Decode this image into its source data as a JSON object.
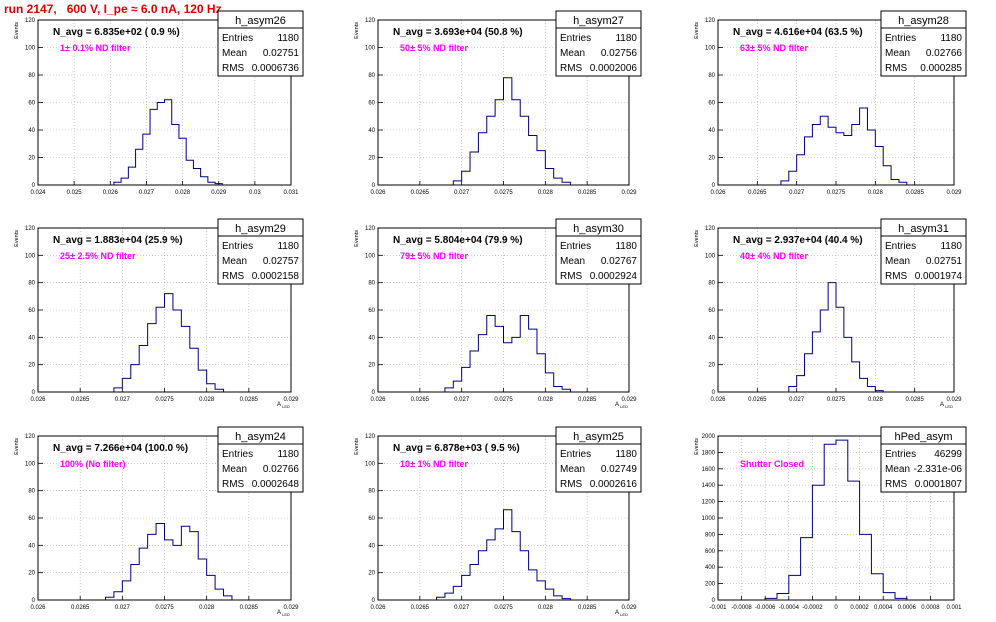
{
  "title": "run 2147,   600 V, I_pe ≈ 6.0 nA, 120 Hz",
  "colors": {
    "histogram": "#00007f",
    "annotation": "#ff00ff",
    "title": "#e00000",
    "grid": "#b0b0b0"
  },
  "chart_data": [
    {
      "type": "histogram",
      "name": "h_asym26",
      "entries": "1180",
      "mean": "0.02751",
      "rms": "0.0006736",
      "navg": "N_avg = 6.835e+02 ( 0.9 %)",
      "filter": "1± 0.1% ND filter",
      "ylabel": "Events",
      "xlabel": "",
      "xlim": [
        0.024,
        0.031
      ],
      "ylim": [
        0,
        120
      ],
      "xticks": [
        "0.024",
        "0.025",
        "0.026",
        "0.027",
        "0.028",
        "0.029",
        "0.03",
        "0.031"
      ],
      "yticks": [
        "0",
        "20",
        "40",
        "60",
        "80",
        "100",
        "120"
      ],
      "x": [
        0.0262,
        0.0264,
        0.0266,
        0.0268,
        0.027,
        0.0272,
        0.0274,
        0.0276,
        0.0278,
        0.028,
        0.0282,
        0.0284,
        0.0286,
        0.0288,
        0.029
      ],
      "y": [
        2,
        5,
        13,
        26,
        37,
        55,
        60,
        62,
        44,
        34,
        18,
        12,
        6,
        2,
        1
      ]
    },
    {
      "type": "histogram",
      "name": "h_asym27",
      "entries": "1180",
      "mean": "0.02756",
      "rms": "0.0002006",
      "navg": "N_avg = 3.693e+04 (50.8 %)",
      "filter": "50± 5% ND filter",
      "ylabel": "Events",
      "xlabel": "",
      "xlim": [
        0.026,
        0.029
      ],
      "ylim": [
        0,
        120
      ],
      "xticks": [
        "0.026",
        "0.0265",
        "0.027",
        "0.0275",
        "0.028",
        "0.0285",
        "0.029"
      ],
      "yticks": [
        "0",
        "20",
        "40",
        "60",
        "80",
        "100",
        "120"
      ],
      "x": [
        0.02695,
        0.02705,
        0.02715,
        0.02725,
        0.02735,
        0.02745,
        0.02755,
        0.02765,
        0.02775,
        0.02785,
        0.02795,
        0.02805,
        0.02815,
        0.02825
      ],
      "y": [
        3,
        10,
        24,
        38,
        50,
        62,
        78,
        62,
        50,
        36,
        25,
        12,
        5,
        2
      ]
    },
    {
      "type": "histogram",
      "name": "h_asym28",
      "entries": "1180",
      "mean": "0.02766",
      "rms": "0.000285",
      "navg": "N_avg = 4.616e+04 (63.5 %)",
      "filter": "63± 5% ND filter",
      "ylabel": "Events",
      "xlabel": "",
      "xlim": [
        0.026,
        0.029
      ],
      "ylim": [
        0,
        120
      ],
      "xticks": [
        "0.026",
        "0.0265",
        "0.027",
        "0.0275",
        "0.028",
        "0.0285",
        "0.029"
      ],
      "yticks": [
        "0",
        "20",
        "40",
        "60",
        "80",
        "100",
        "120"
      ],
      "x": [
        0.02685,
        0.02695,
        0.02705,
        0.02715,
        0.02725,
        0.02735,
        0.02745,
        0.02755,
        0.02765,
        0.02775,
        0.02785,
        0.02795,
        0.02805,
        0.02815,
        0.02825,
        0.02835
      ],
      "y": [
        3,
        10,
        22,
        35,
        44,
        50,
        42,
        38,
        36,
        44,
        56,
        40,
        28,
        14,
        4,
        2
      ]
    },
    {
      "type": "histogram",
      "name": "h_asym29",
      "entries": "1180",
      "mean": "0.02757",
      "rms": "0.0002158",
      "navg": "N_avg = 1.883e+04 (25.9 %)",
      "filter": "25± 2.5% ND filter",
      "ylabel": "Events",
      "xlabel": "A_{LED}",
      "xlim": [
        0.026,
        0.029
      ],
      "ylim": [
        0,
        120
      ],
      "xticks": [
        "0.026",
        "0.0265",
        "0.027",
        "0.0275",
        "0.028",
        "0.0285",
        "0.029"
      ],
      "yticks": [
        "0",
        "20",
        "40",
        "60",
        "80",
        "100",
        "120"
      ],
      "x": [
        0.02695,
        0.02705,
        0.02715,
        0.02725,
        0.02735,
        0.02745,
        0.02755,
        0.02765,
        0.02775,
        0.02785,
        0.02795,
        0.02805,
        0.02815
      ],
      "y": [
        3,
        10,
        20,
        34,
        50,
        62,
        72,
        60,
        48,
        32,
        16,
        6,
        2
      ]
    },
    {
      "type": "histogram",
      "name": "h_asym30",
      "entries": "1180",
      "mean": "0.02767",
      "rms": "0.0002924",
      "navg": "N_avg = 5.804e+04 (79.9 %)",
      "filter": "79± 5% ND filter",
      "ylabel": "Events",
      "xlabel": "A_{LED}",
      "xlim": [
        0.026,
        0.029
      ],
      "ylim": [
        0,
        120
      ],
      "xticks": [
        "0.026",
        "0.0265",
        "0.027",
        "0.0275",
        "0.028",
        "0.0285",
        "0.029"
      ],
      "yticks": [
        "0",
        "20",
        "40",
        "60",
        "80",
        "100",
        "120"
      ],
      "x": [
        0.02685,
        0.02695,
        0.02705,
        0.02715,
        0.02725,
        0.02735,
        0.02745,
        0.02755,
        0.02765,
        0.02775,
        0.02785,
        0.02795,
        0.02805,
        0.02815,
        0.02825
      ],
      "y": [
        3,
        8,
        18,
        30,
        42,
        56,
        48,
        36,
        40,
        56,
        46,
        28,
        14,
        4,
        2
      ]
    },
    {
      "type": "histogram",
      "name": "h_asym31",
      "entries": "1180",
      "mean": "0.02751",
      "rms": "0.0001974",
      "navg": "N_avg = 2.937e+04 (40.4 %)",
      "filter": "40± 4% ND filter",
      "ylabel": "Events",
      "xlabel": "A_{LED}",
      "xlim": [
        0.026,
        0.029
      ],
      "ylim": [
        0,
        120
      ],
      "xticks": [
        "0.026",
        "0.0265",
        "0.027",
        "0.0275",
        "0.028",
        "0.0285",
        "0.029"
      ],
      "yticks": [
        "0",
        "20",
        "40",
        "60",
        "80",
        "100",
        "120"
      ],
      "x": [
        0.02695,
        0.02705,
        0.02715,
        0.02725,
        0.02735,
        0.02745,
        0.02755,
        0.02765,
        0.02775,
        0.02785,
        0.02795,
        0.02805
      ],
      "y": [
        4,
        12,
        28,
        44,
        60,
        80,
        62,
        40,
        22,
        10,
        4,
        1
      ]
    },
    {
      "type": "histogram",
      "name": "h_asym24",
      "entries": "1180",
      "mean": "0.02766",
      "rms": "0.0002648",
      "navg": "N_avg = 7.266e+04 (100.0 %)",
      "filter": "100% (No filter)",
      "ylabel": "Events",
      "xlabel": "A_{LED}",
      "xlim": [
        0.026,
        0.029
      ],
      "ylim": [
        0,
        120
      ],
      "xticks": [
        "0.026",
        "0.0265",
        "0.027",
        "0.0275",
        "0.028",
        "0.0285",
        "0.029"
      ],
      "yticks": [
        "0",
        "20",
        "40",
        "60",
        "80",
        "100",
        "120"
      ],
      "x": [
        0.02685,
        0.02695,
        0.02705,
        0.02715,
        0.02725,
        0.02735,
        0.02745,
        0.02755,
        0.02765,
        0.02775,
        0.02785,
        0.02795,
        0.02805,
        0.02815,
        0.02825
      ],
      "y": [
        2,
        6,
        14,
        26,
        38,
        48,
        56,
        44,
        40,
        54,
        50,
        30,
        18,
        8,
        3
      ]
    },
    {
      "type": "histogram",
      "name": "h_asym25",
      "entries": "1180",
      "mean": "0.02749",
      "rms": "0.0002616",
      "navg": "N_avg = 6.878e+03 ( 9.5 %)",
      "filter": "10± 1% ND filter",
      "ylabel": "Events",
      "xlabel": "A_{LED}",
      "xlim": [
        0.026,
        0.029
      ],
      "ylim": [
        0,
        120
      ],
      "xticks": [
        "0.026",
        "0.0265",
        "0.027",
        "0.0275",
        "0.028",
        "0.0285",
        "0.029"
      ],
      "yticks": [
        "0",
        "20",
        "40",
        "60",
        "80",
        "100",
        "120"
      ],
      "x": [
        0.02675,
        0.02685,
        0.02695,
        0.02705,
        0.02715,
        0.02725,
        0.02735,
        0.02745,
        0.02755,
        0.02765,
        0.02775,
        0.02785,
        0.02795,
        0.02805,
        0.02815,
        0.02825
      ],
      "y": [
        2,
        5,
        10,
        18,
        26,
        36,
        44,
        52,
        66,
        50,
        36,
        22,
        14,
        8,
        3,
        1
      ]
    },
    {
      "type": "histogram",
      "name": "hPed_asym",
      "entries": "46299",
      "mean": "-2.331e-06",
      "rms": "0.0001807",
      "navg": "",
      "filter": "Shutter Closed",
      "ylabel": "Events",
      "xlabel": "",
      "xlim": [
        -0.001,
        0.001
      ],
      "ylim": [
        0,
        2000
      ],
      "xticks": [
        "-0.001",
        "-0.0008",
        "-0.0006",
        "-0.0004",
        "-0.0002",
        "0",
        "0.0002",
        "0.0004",
        "0.0006",
        "0.0008",
        "0.001"
      ],
      "yticks": [
        "0",
        "200",
        "400",
        "600",
        "800",
        "1000",
        "1200",
        "1400",
        "1600",
        "1800",
        "2000"
      ],
      "x": [
        -0.00055,
        -0.00045,
        -0.00035,
        -0.00025,
        -0.00015,
        -5e-05,
        5e-05,
        0.00015,
        0.00025,
        0.00035,
        0.00045,
        0.00055
      ],
      "y": [
        20,
        80,
        300,
        760,
        1400,
        1900,
        1950,
        1450,
        800,
        320,
        90,
        20
      ]
    }
  ]
}
